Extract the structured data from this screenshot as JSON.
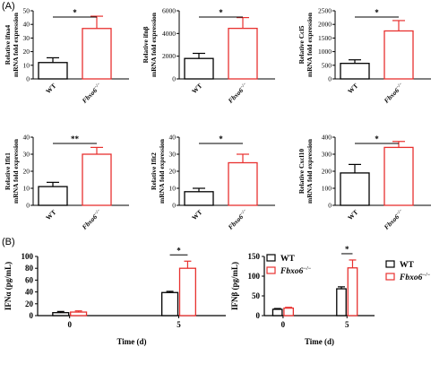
{
  "panels": {
    "a": "(A)",
    "b": "(B)"
  },
  "legend": {
    "wt": "WT",
    "ko": "Fbxo6",
    "ko_sup": "−/−"
  },
  "colors": {
    "wt": "#000000",
    "ko": "#e8312f"
  },
  "chart_data": [
    {
      "type": "bar",
      "ylabel_line1": "Relative ifna4",
      "ylabel_line2": "mRNA fold expression",
      "categories": [
        "WT",
        "Fbxo6"
      ],
      "values": [
        12,
        37
      ],
      "errors": [
        3.5,
        9
      ],
      "ylim": [
        0,
        50
      ],
      "yticks": [
        "0",
        "10",
        "20",
        "30",
        "40",
        "50"
      ],
      "significance": "*"
    },
    {
      "type": "bar",
      "ylabel_line1": "Relative ifnβ",
      "ylabel_line2": "mRNA fold expression",
      "categories": [
        "WT",
        "Fbxo6"
      ],
      "values": [
        1800,
        4450
      ],
      "errors": [
        450,
        950
      ],
      "ylim": [
        0,
        6000
      ],
      "yticks": [
        "0",
        "2000",
        "4000",
        "6000"
      ],
      "significance": "*"
    },
    {
      "type": "bar",
      "ylabel_line1": "Relative Ccl5",
      "ylabel_line2": "mRNA fold expression",
      "categories": [
        "WT",
        "Fbxo6"
      ],
      "values": [
        570,
        1760
      ],
      "errors": [
        130,
        380
      ],
      "ylim": [
        0,
        2500
      ],
      "yticks": [
        "0",
        "500",
        "1000",
        "1500",
        "2000",
        "2500"
      ],
      "significance": "*"
    },
    {
      "type": "bar",
      "ylabel_line1": "Relative Ifit1",
      "ylabel_line2": "mRNA fold expression",
      "categories": [
        "WT",
        "Fbxo6"
      ],
      "values": [
        11,
        30
      ],
      "errors": [
        2.5,
        4
      ],
      "ylim": [
        0,
        40
      ],
      "yticks": [
        "0",
        "10",
        "20",
        "30",
        "40"
      ],
      "significance": "**"
    },
    {
      "type": "bar",
      "ylabel_line1": "Relative Ifit2",
      "ylabel_line2": "mRNA fold expression",
      "categories": [
        "WT",
        "Fbxo6"
      ],
      "values": [
        8,
        25
      ],
      "errors": [
        2,
        5
      ],
      "ylim": [
        0,
        40
      ],
      "yticks": [
        "0",
        "10",
        "20",
        "30",
        "40"
      ],
      "significance": "*"
    },
    {
      "type": "bar",
      "ylabel_line1": "Relative Cxcl10",
      "ylabel_line2": "mRNA fold expression",
      "categories": [
        "WT",
        "Fbxo6"
      ],
      "values": [
        190,
        340
      ],
      "errors": [
        50,
        35
      ],
      "ylim": [
        0,
        400
      ],
      "yticks": [
        "0",
        "100",
        "200",
        "300",
        "400"
      ],
      "significance": "*"
    },
    {
      "type": "bar",
      "ylabel": "IFNα (pg/mL)",
      "xlabel": "Time (d)",
      "categories": [
        "0",
        "5"
      ],
      "series": [
        {
          "name": "WT",
          "values": [
            5,
            39
          ],
          "errors": [
            2,
            2
          ]
        },
        {
          "name": "Fbxo6",
          "values": [
            6,
            80
          ],
          "errors": [
            2,
            12
          ]
        }
      ],
      "ylim": [
        0,
        100
      ],
      "yticks": [
        "0",
        "20",
        "40",
        "60",
        "80",
        "100"
      ],
      "significance": "*"
    },
    {
      "type": "bar",
      "ylabel": "IFNβ (pg/mL)",
      "xlabel": "Time (d)",
      "categories": [
        "0",
        "5"
      ],
      "series": [
        {
          "name": "WT",
          "values": [
            16,
            68
          ],
          "errors": [
            2,
            5
          ]
        },
        {
          "name": "Fbxo6",
          "values": [
            19,
            121
          ],
          "errors": [
            2,
            20
          ]
        }
      ],
      "ylim": [
        0,
        150
      ],
      "yticks": [
        "0",
        "50",
        "100",
        "150"
      ],
      "significance": "*"
    }
  ]
}
